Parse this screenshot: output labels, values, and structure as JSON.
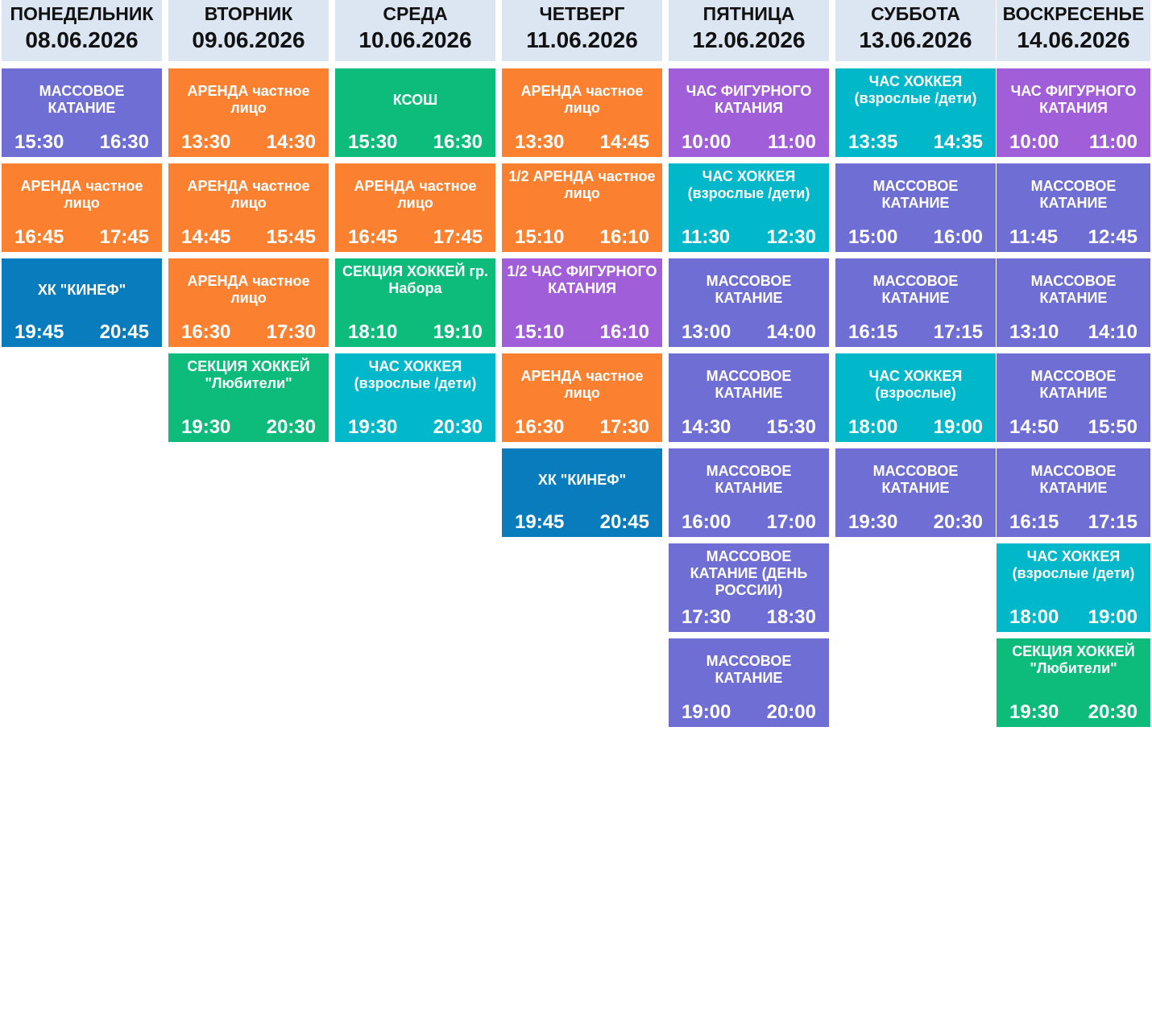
{
  "days": [
    {
      "name": "ПОНЕДЕЛЬНИК",
      "date": "08.06.2026",
      "slots": [
        {
          "title": "МАССОВОЕ КАТАНИЕ",
          "start": "15:30",
          "end": "16:30",
          "color": "#6f6ed4"
        },
        {
          "title": "АРЕНДА частное лицо",
          "start": "16:45",
          "end": "17:45",
          "color": "#fb8131"
        },
        {
          "title": "ХК \"КИНЕФ\"",
          "start": "19:45",
          "end": "20:45",
          "color": "#087cbc"
        }
      ]
    },
    {
      "name": "ВТОРНИК",
      "date": "09.06.2026",
      "slots": [
        {
          "title": "АРЕНДА частное лицо",
          "start": "13:30",
          "end": "14:30",
          "color": "#fb8131"
        },
        {
          "title": "АРЕНДА частное лицо",
          "start": "14:45",
          "end": "15:45",
          "color": "#fb8131"
        },
        {
          "title": "АРЕНДА частное лицо",
          "start": "16:30",
          "end": "17:30",
          "color": "#fb8131"
        },
        {
          "title": "СЕКЦИЯ ХОККЕЙ \"Любители\"",
          "start": "19:30",
          "end": "20:30",
          "color": "#0dbc7a"
        }
      ]
    },
    {
      "name": "СРЕДА",
      "date": "10.06.2026",
      "slots": [
        {
          "title": "КСОШ",
          "start": "15:30",
          "end": "16:30",
          "color": "#0dbc7a"
        },
        {
          "title": "АРЕНДА частное лицо",
          "start": "16:45",
          "end": "17:45",
          "color": "#fb8131"
        },
        {
          "title": "СЕКЦИЯ ХОККЕЙ гр. Набора",
          "start": "18:10",
          "end": "19:10",
          "color": "#0dbc7a"
        },
        {
          "title": "ЧАС ХОККЕЯ (взрослые /дети)",
          "start": "19:30",
          "end": "20:30",
          "color": "#00b8c9"
        }
      ]
    },
    {
      "name": "ЧЕТВЕРГ",
      "date": "11.06.2026",
      "slots": [
        {
          "title": "АРЕНДА частное лицо",
          "start": "13:30",
          "end": "14:45",
          "color": "#fb8131"
        },
        {
          "title": "1/2 АРЕНДА частное лицо",
          "start": "15:10",
          "end": "16:10",
          "color": "#fb8131"
        },
        {
          "title": "1/2 ЧАС ФИГУРНОГО КАТАНИЯ",
          "start": "15:10",
          "end": "16:10",
          "color": "#a15ed9"
        },
        {
          "title": "АРЕНДА частное лицо",
          "start": "16:30",
          "end": "17:30",
          "color": "#fb8131"
        },
        {
          "title": "ХК \"КИНЕФ\"",
          "start": "19:45",
          "end": "20:45",
          "color": "#087cbc"
        }
      ]
    },
    {
      "name": "ПЯТНИЦА",
      "date": "12.06.2026",
      "slots": [
        {
          "title": "ЧАС ФИГУРНОГО КАТАНИЯ",
          "start": "10:00",
          "end": "11:00",
          "color": "#a15ed9"
        },
        {
          "title": "ЧАС ХОККЕЯ (взрослые /дети)",
          "start": "11:30",
          "end": "12:30",
          "color": "#00b8c9"
        },
        {
          "title": "МАССОВОЕ КАТАНИЕ",
          "start": "13:00",
          "end": "14:00",
          "color": "#6f6ed4"
        },
        {
          "title": "МАССОВОЕ КАТАНИЕ",
          "start": "14:30",
          "end": "15:30",
          "color": "#6f6ed4"
        },
        {
          "title": "МАССОВОЕ КАТАНИЕ",
          "start": "16:00",
          "end": "17:00",
          "color": "#6f6ed4"
        },
        {
          "title": "МАССОВОЕ КАТАНИЕ (ДЕНЬ РОССИИ)",
          "start": "17:30",
          "end": "18:30",
          "color": "#6f6ed4"
        },
        {
          "title": "МАССОВОЕ КАТАНИЕ",
          "start": "19:00",
          "end": "20:00",
          "color": "#6f6ed4"
        }
      ]
    },
    {
      "name": "СУББОТА",
      "date": "13.06.2026",
      "slots": [
        {
          "title": "ЧАС ХОККЕЯ (взрослые /дети)",
          "start": "13:35",
          "end": "14:35",
          "color": "#00b8c9"
        },
        {
          "title": "МАССОВОЕ КАТАНИЕ",
          "start": "15:00",
          "end": "16:00",
          "color": "#6f6ed4"
        },
        {
          "title": "МАССОВОЕ КАТАНИЕ",
          "start": "16:15",
          "end": "17:15",
          "color": "#6f6ed4"
        },
        {
          "title": "ЧАС ХОККЕЯ (взрослые)",
          "start": "18:00",
          "end": "19:00",
          "color": "#00b8c9"
        },
        {
          "title": "МАССОВОЕ КАТАНИЕ",
          "start": "19:30",
          "end": "20:30",
          "color": "#6f6ed4"
        }
      ]
    },
    {
      "name": "ВОСКРЕСЕНЬЕ",
      "date": "14.06.2026",
      "slots": [
        {
          "title": "ЧАС ФИГУРНОГО КАТАНИЯ",
          "start": "10:00",
          "end": "11:00",
          "color": "#a15ed9"
        },
        {
          "title": "МАССОВОЕ КАТАНИЕ",
          "start": "11:45",
          "end": "12:45",
          "color": "#6f6ed4"
        },
        {
          "title": "МАССОВОЕ КАТАНИЕ",
          "start": "13:10",
          "end": "14:10",
          "color": "#6f6ed4"
        },
        {
          "title": "МАССОВОЕ КАТАНИЕ",
          "start": "14:50",
          "end": "15:50",
          "color": "#6f6ed4"
        },
        {
          "title": "МАССОВОЕ КАТАНИЕ",
          "start": "16:15",
          "end": "17:15",
          "color": "#6f6ed4"
        },
        {
          "title": "ЧАС ХОККЕЯ (взрослые /дети)",
          "start": "18:00",
          "end": "19:00",
          "color": "#00b8c9"
        },
        {
          "title": "СЕКЦИЯ ХОККЕЙ \"Любители\"",
          "start": "19:30",
          "end": "20:30",
          "color": "#0dbc7a"
        }
      ]
    }
  ]
}
